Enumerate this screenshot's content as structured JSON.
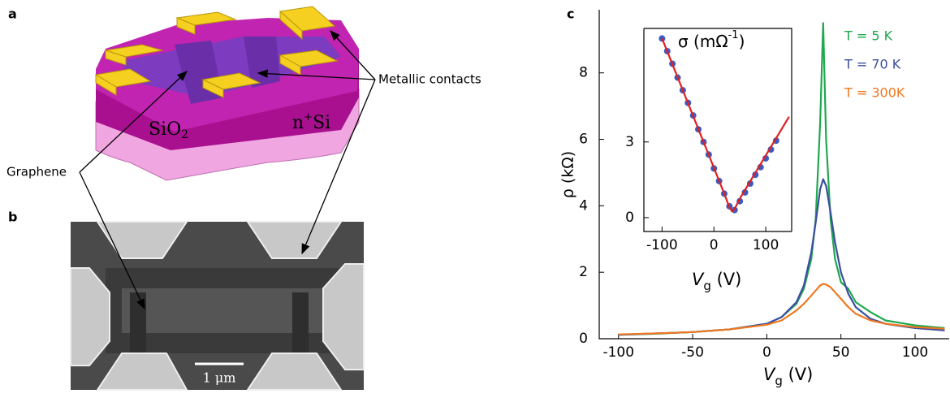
{
  "panel_labels": [
    "a",
    "b",
    "c"
  ],
  "annotations": {
    "contacts": "Metallic contacts",
    "graphene": "Graphene",
    "sio2": [
      "SiO",
      "2"
    ],
    "nsi": [
      "n",
      "+",
      "Si"
    ],
    "scale_bar": "1 μm"
  },
  "chart_data": [
    {
      "type": "line",
      "y_label": "ρ (kΩ)",
      "x_label": [
        "V",
        "g",
        " (V)"
      ],
      "xlim": [
        -113,
        123
      ],
      "xticks": [
        -100,
        -50,
        0,
        50,
        100
      ],
      "ylim": [
        0,
        9.9
      ],
      "yticks": [
        0,
        2,
        4,
        6,
        8
      ],
      "legend": "top-right",
      "x": [
        -100,
        -75,
        -50,
        -25,
        0,
        10,
        20,
        25,
        30,
        33,
        36,
        38,
        40,
        43,
        46,
        50,
        55,
        60,
        70,
        80,
        100,
        120
      ],
      "series": [
        {
          "name": "T = 5 K",
          "color": "#1fa84f",
          "values": [
            0.12,
            0.15,
            0.2,
            0.28,
            0.45,
            0.65,
            1.05,
            1.5,
            2.4,
            3.6,
            6.5,
            9.5,
            6.0,
            3.6,
            2.4,
            1.7,
            1.5,
            1.1,
            0.8,
            0.55,
            0.4,
            0.32
          ]
        },
        {
          "name": "T = 70 K",
          "color": "#3b4fa0",
          "values": [
            0.12,
            0.16,
            0.2,
            0.28,
            0.45,
            0.65,
            1.1,
            1.6,
            2.6,
            3.5,
            4.5,
            4.8,
            4.6,
            3.8,
            2.9,
            2.0,
            1.35,
            0.95,
            0.6,
            0.45,
            0.32,
            0.25
          ]
        },
        {
          "name": "T = 300K",
          "color": "#f07820",
          "values": [
            0.13,
            0.16,
            0.2,
            0.28,
            0.42,
            0.55,
            0.85,
            1.05,
            1.3,
            1.45,
            1.6,
            1.65,
            1.63,
            1.55,
            1.4,
            1.2,
            0.95,
            0.75,
            0.55,
            0.45,
            0.35,
            0.3
          ]
        }
      ]
    },
    {
      "type": "line",
      "title": [
        "σ (mΩ",
        "-1",
        ")"
      ],
      "x_label": [
        "V",
        "g",
        " (V)"
      ],
      "xlim": [
        -135,
        150
      ],
      "xticks": [
        -100,
        0,
        100
      ],
      "ylim": [
        -0.55,
        7.5
      ],
      "yticks": [
        0,
        3
      ],
      "series": [
        {
          "color": "#3b5bc0",
          "style": "markers",
          "x": [
            -100,
            -90,
            -80,
            -70,
            -60,
            -50,
            -40,
            -30,
            -20,
            -10,
            0,
            10,
            20,
            30,
            40,
            50,
            60,
            70,
            80,
            90,
            100,
            110,
            120
          ],
          "values": [
            7.1,
            6.6,
            6.1,
            5.55,
            5.05,
            4.55,
            4.05,
            3.5,
            3.0,
            2.5,
            1.95,
            1.45,
            0.95,
            0.45,
            0.3,
            0.65,
            1.0,
            1.35,
            1.7,
            2.0,
            2.35,
            2.7,
            3.05
          ]
        },
        {
          "color": "#e02020",
          "style": "line",
          "x": [
            -100,
            20,
            30,
            35,
            40,
            50,
            145
          ],
          "values": [
            7.1,
            0.95,
            0.4,
            0.25,
            0.35,
            0.75,
            4.0
          ]
        }
      ]
    }
  ]
}
